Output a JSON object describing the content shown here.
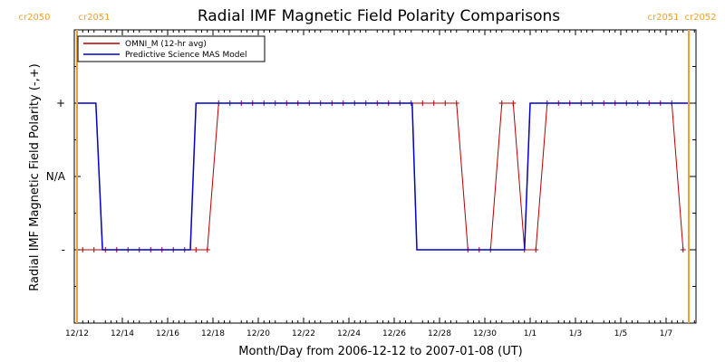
{
  "colors": {
    "omni": "#b40000",
    "model": "#0000c8",
    "rotation_marker": "#f0a030",
    "axis": "#000000"
  },
  "chart_data": {
    "type": "line",
    "title": "Radial IMF Magnetic Field Polarity Comparisons",
    "xlabel": "Month/Day from 2006-12-12 to 2007-01-08 (UT)",
    "ylabel": "Radial IMF Magnetic Field Polarity (-,+)",
    "x_start": "2006-12-12",
    "xlim": [
      "2006-12-12",
      "2007-01-08"
    ],
    "x_tick_labels": [
      "12/12",
      "12/14",
      "12/16",
      "12/18",
      "12/20",
      "12/22",
      "12/24",
      "12/26",
      "12/28",
      "12/30",
      "1/1",
      "1/3",
      "1/5",
      "1/7"
    ],
    "y_tick_labels": [
      "-",
      "N/A",
      "+"
    ],
    "y_tick_values": [
      -1,
      0,
      1
    ],
    "ylim": [
      -2,
      2
    ],
    "legend_position": "top-left",
    "rotation_markers": [
      {
        "date": "2006-12-12",
        "left_label": "cr2050",
        "right_label": "cr2051"
      },
      {
        "date": "2007-01-08",
        "left_label": "cr2051",
        "right_label": "cr2052"
      }
    ],
    "series": [
      {
        "name": "OMNI_M (12-hr avg)",
        "style": "line-with-plus-markers",
        "x": [
          "2006-12-12 06:00",
          "2006-12-12 18:00",
          "2006-12-13 06:00",
          "2006-12-13 18:00",
          "2006-12-14 06:00",
          "2006-12-14 18:00",
          "2006-12-15 06:00",
          "2006-12-15 18:00",
          "2006-12-16 06:00",
          "2006-12-16 18:00",
          "2006-12-17 06:00",
          "2006-12-17 18:00",
          "2006-12-18 06:00",
          "2006-12-18 18:00",
          "2006-12-19 06:00",
          "2006-12-19 18:00",
          "2006-12-20 06:00",
          "2006-12-20 18:00",
          "2006-12-21 06:00",
          "2006-12-21 18:00",
          "2006-12-22 06:00",
          "2006-12-22 18:00",
          "2006-12-23 06:00",
          "2006-12-23 18:00",
          "2006-12-24 06:00",
          "2006-12-24 18:00",
          "2006-12-25 06:00",
          "2006-12-25 18:00",
          "2006-12-26 06:00",
          "2006-12-26 18:00",
          "2006-12-27 06:00",
          "2006-12-27 18:00",
          "2006-12-28 06:00",
          "2006-12-28 18:00",
          "2006-12-29 06:00",
          "2006-12-29 18:00",
          "2006-12-30 06:00",
          "2006-12-30 18:00",
          "2006-12-31 06:00",
          "2006-12-31 18:00",
          "2007-01-01 06:00",
          "2007-01-01 18:00",
          "2007-01-02 06:00",
          "2007-01-02 18:00",
          "2007-01-03 06:00",
          "2007-01-03 18:00",
          "2007-01-04 06:00",
          "2007-01-04 18:00",
          "2007-01-05 06:00",
          "2007-01-05 18:00",
          "2007-01-06 06:00",
          "2007-01-06 18:00",
          "2007-01-07 06:00",
          "2007-01-07 18:00"
        ],
        "y": [
          -1,
          -1,
          -1,
          -1,
          -1,
          -1,
          -1,
          -1,
          -1,
          -1,
          -1,
          -1,
          1,
          1,
          1,
          1,
          1,
          1,
          1,
          1,
          1,
          1,
          1,
          1,
          1,
          1,
          1,
          1,
          1,
          1,
          1,
          1,
          1,
          1,
          -1,
          -1,
          -1,
          1,
          1,
          -1,
          -1,
          1,
          1,
          1,
          1,
          1,
          1,
          1,
          1,
          1,
          1,
          1,
          1,
          -1
        ]
      },
      {
        "name": "Predictive Science MAS Model",
        "style": "line",
        "x": [
          "2006-12-12 00:00",
          "2006-12-12 20:00",
          "2006-12-13 03:00",
          "2006-12-17 00:00",
          "2006-12-17 06:00",
          "2006-12-26 19:00",
          "2006-12-27 00:00",
          "2006-12-31 18:00",
          "2007-01-01 00:00",
          "2007-01-08 00:00"
        ],
        "y": [
          1,
          1,
          -1,
          -1,
          1,
          1,
          -1,
          -1,
          1,
          1
        ]
      }
    ]
  }
}
